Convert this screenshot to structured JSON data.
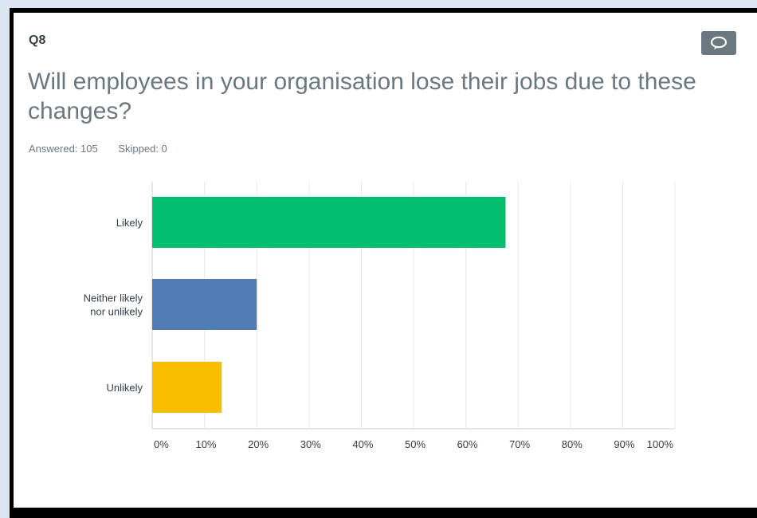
{
  "question": {
    "number": "Q8",
    "title": "Will employees in your organisation lose their jobs due to these changes?",
    "answered_label": "Answered: 105",
    "skipped_label": "Skipped: 0",
    "comment_icon": "speech-bubble-icon"
  },
  "chart_data": {
    "type": "bar",
    "orientation": "horizontal",
    "categories": [
      [
        "Likely"
      ],
      [
        "Neither likely",
        "nor unlikely"
      ],
      [
        "Unlikely"
      ]
    ],
    "values": [
      67.6,
      20.0,
      13.3
    ],
    "colors": [
      "#00bf6f",
      "#507cb6",
      "#f9be00"
    ],
    "xlim": [
      0,
      100
    ],
    "xticks": [
      "0%",
      "10%",
      "20%",
      "30%",
      "40%",
      "50%",
      "60%",
      "70%",
      "80%",
      "90%",
      "100%"
    ],
    "grid": true,
    "title": "",
    "xlabel": "",
    "ylabel": ""
  }
}
